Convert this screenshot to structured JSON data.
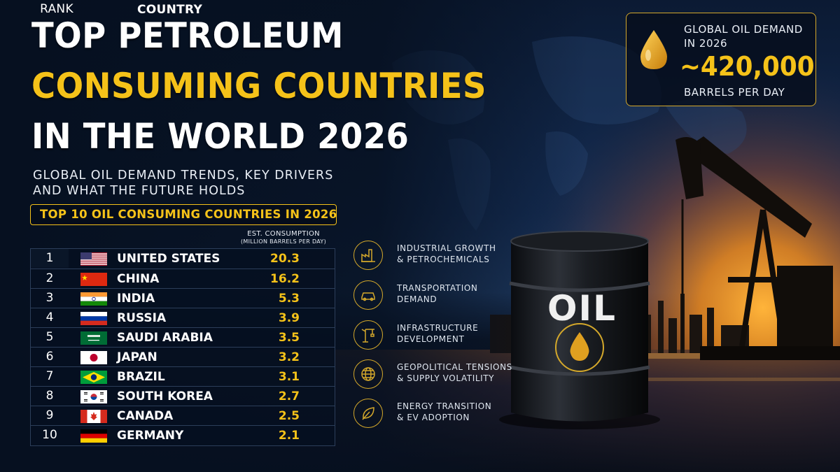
{
  "title": {
    "line1": "TOP PETROLEUM",
    "line2": "CONSUMING COUNTRIES",
    "line3": "IN THE WORLD 2026"
  },
  "subtitle": {
    "line1": "GLOBAL OIL DEMAND TRENDS, KEY DRIVERS",
    "line2": "AND WHAT THE FUTURE HOLDS"
  },
  "callout": {
    "line1": "GLOBAL OIL DEMAND",
    "line2": "IN 2026",
    "value": "~420,000",
    "line3": "BARRELS PER DAY",
    "icon": "oil-drop-icon"
  },
  "table": {
    "heading": "TOP 10 OIL CONSUMING COUNTRIES IN 2026",
    "col_rank": "RANK",
    "col_country": "COUNTRY",
    "col_consumption": "EST. CONSUMPTION",
    "col_consumption_unit": "(MILLION BARRELS PER DAY)",
    "rows": [
      {
        "rank": "1",
        "country": "UNITED STATES",
        "value": "20.3",
        "flag": "us-flag"
      },
      {
        "rank": "2",
        "country": "CHINA",
        "value": "16.2",
        "flag": "china-flag"
      },
      {
        "rank": "3",
        "country": "INDIA",
        "value": "5.3",
        "flag": "india-flag"
      },
      {
        "rank": "4",
        "country": "RUSSIA",
        "value": "3.9",
        "flag": "russia-flag"
      },
      {
        "rank": "5",
        "country": "SAUDI ARABIA",
        "value": "3.5",
        "flag": "saudi-arabia-flag"
      },
      {
        "rank": "6",
        "country": "JAPAN",
        "value": "3.2",
        "flag": "japan-flag"
      },
      {
        "rank": "7",
        "country": "BRAZIL",
        "value": "3.1",
        "flag": "brazil-flag"
      },
      {
        "rank": "8",
        "country": "SOUTH KOREA",
        "value": "2.7",
        "flag": "south-korea-flag"
      },
      {
        "rank": "9",
        "country": "CANADA",
        "value": "2.5",
        "flag": "canada-flag"
      },
      {
        "rank": "10",
        "country": "GERMANY",
        "value": "2.1",
        "flag": "germany-flag"
      }
    ]
  },
  "drivers": [
    {
      "line1": "INDUSTRIAL GROWTH",
      "line2": "& PETROCHEMICALS",
      "icon": "factory-icon"
    },
    {
      "line1": "TRANSPORTATION",
      "line2": "DEMAND",
      "icon": "car-icon"
    },
    {
      "line1": "INFRASTRUCTURE",
      "line2": "DEVELOPMENT",
      "icon": "crane-icon"
    },
    {
      "line1": "GEOPOLITICAL TENSIONS",
      "line2": "& SUPPLY VOLATILITY",
      "icon": "globe-icon"
    },
    {
      "line1": "ENERGY TRANSITION",
      "line2": "& EV ADOPTION",
      "icon": "leaf-icon"
    }
  ],
  "barrel_label": "OIL",
  "colors": {
    "accent": "#f5c219",
    "background": "#07111f",
    "sunset": "#f08a1c"
  }
}
